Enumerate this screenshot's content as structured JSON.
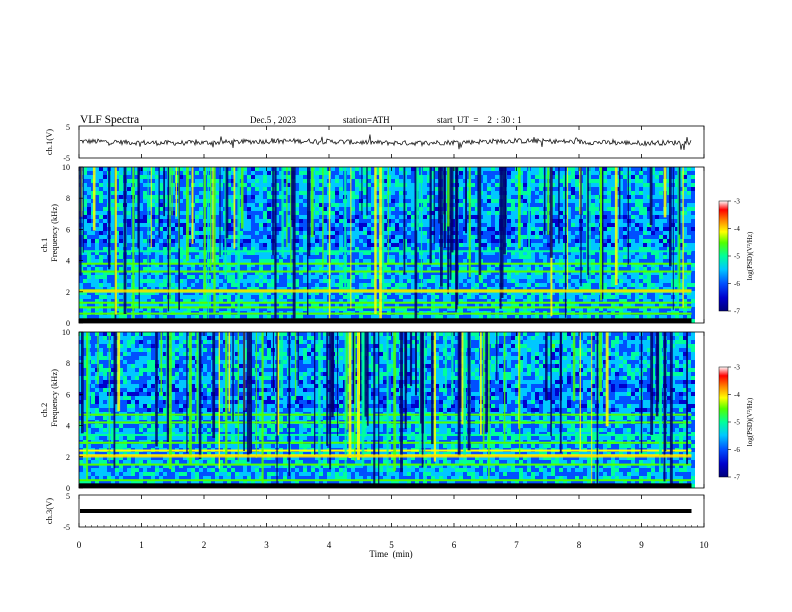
{
  "header": {
    "title": "VLF  Spectra",
    "date": "Dec.5  , 2023",
    "station": "station=ATH",
    "start": "start  UT  =    2  : 30 : 1"
  },
  "colors": {
    "colormap": [
      "#00007a",
      "#0000cc",
      "#0050ff",
      "#00c8ff",
      "#00ff9a",
      "#50ff00",
      "#ffff00",
      "#ff8800",
      "#ff0000",
      "#ffffff"
    ],
    "trace": "#000000",
    "axis": "#000000"
  },
  "chart_data": [
    {
      "type": "line",
      "name": "ch1-waveform",
      "ylabel": "ch.1(V)",
      "ylim": [
        -5,
        5
      ],
      "yticks": [
        "5",
        "-5"
      ],
      "xlim": [
        0,
        10
      ],
      "baseline_value": 0,
      "noise_amplitude": 0.8
    },
    {
      "type": "heatmap",
      "name": "ch1-spectrogram",
      "ylabel": "ch.1\nFrequency  (kHz)",
      "ylabel_lines": [
        "ch.1",
        "Frequency  (kHz)"
      ],
      "ylim": [
        0,
        10
      ],
      "yticks": [
        "0",
        "2",
        "4",
        "6",
        "8",
        "10"
      ],
      "xlim": [
        0,
        10
      ],
      "data_end_min": 9.8,
      "colorbar": {
        "label": "log(PSD)(V²/Hz)",
        "range": [
          -7,
          -3
        ],
        "ticks": [
          "-3",
          "-4",
          "-5",
          "-6",
          "-7"
        ]
      },
      "bands_khz": [
        0.6,
        1.0,
        1.3,
        2.0,
        2.1,
        3.3,
        3.8,
        4.6
      ]
    },
    {
      "type": "heatmap",
      "name": "ch2-spectrogram",
      "ylabel": "ch.2\nFrequency  (kHz)",
      "ylabel_lines": [
        "ch.2",
        "Frequency  (kHz)"
      ],
      "ylim": [
        0,
        10
      ],
      "yticks": [
        "0",
        "2",
        "4",
        "6",
        "8",
        "10"
      ],
      "xlim": [
        0,
        10
      ],
      "data_end_min": 9.8,
      "colorbar": {
        "label": "log(PSD)(V²/Hz)",
        "range": [
          -7,
          -3
        ],
        "ticks": [
          "-3",
          "-4",
          "-5",
          "-6",
          "-7"
        ]
      },
      "bands_khz": [
        0.5,
        1.5,
        2.1,
        2.4,
        2.9,
        3.4,
        4.2,
        4.7
      ]
    },
    {
      "type": "line",
      "name": "ch3-waveform",
      "ylabel": "ch.3(V)",
      "ylim": [
        -5,
        5
      ],
      "yticks": [
        "5",
        "-5"
      ],
      "xlim": [
        0,
        10
      ],
      "constant_value": 0,
      "xlabel": "Time  (min)",
      "xticks": [
        "0",
        "1",
        "2",
        "3",
        "4",
        "5",
        "6",
        "7",
        "8",
        "9",
        "10"
      ]
    }
  ]
}
